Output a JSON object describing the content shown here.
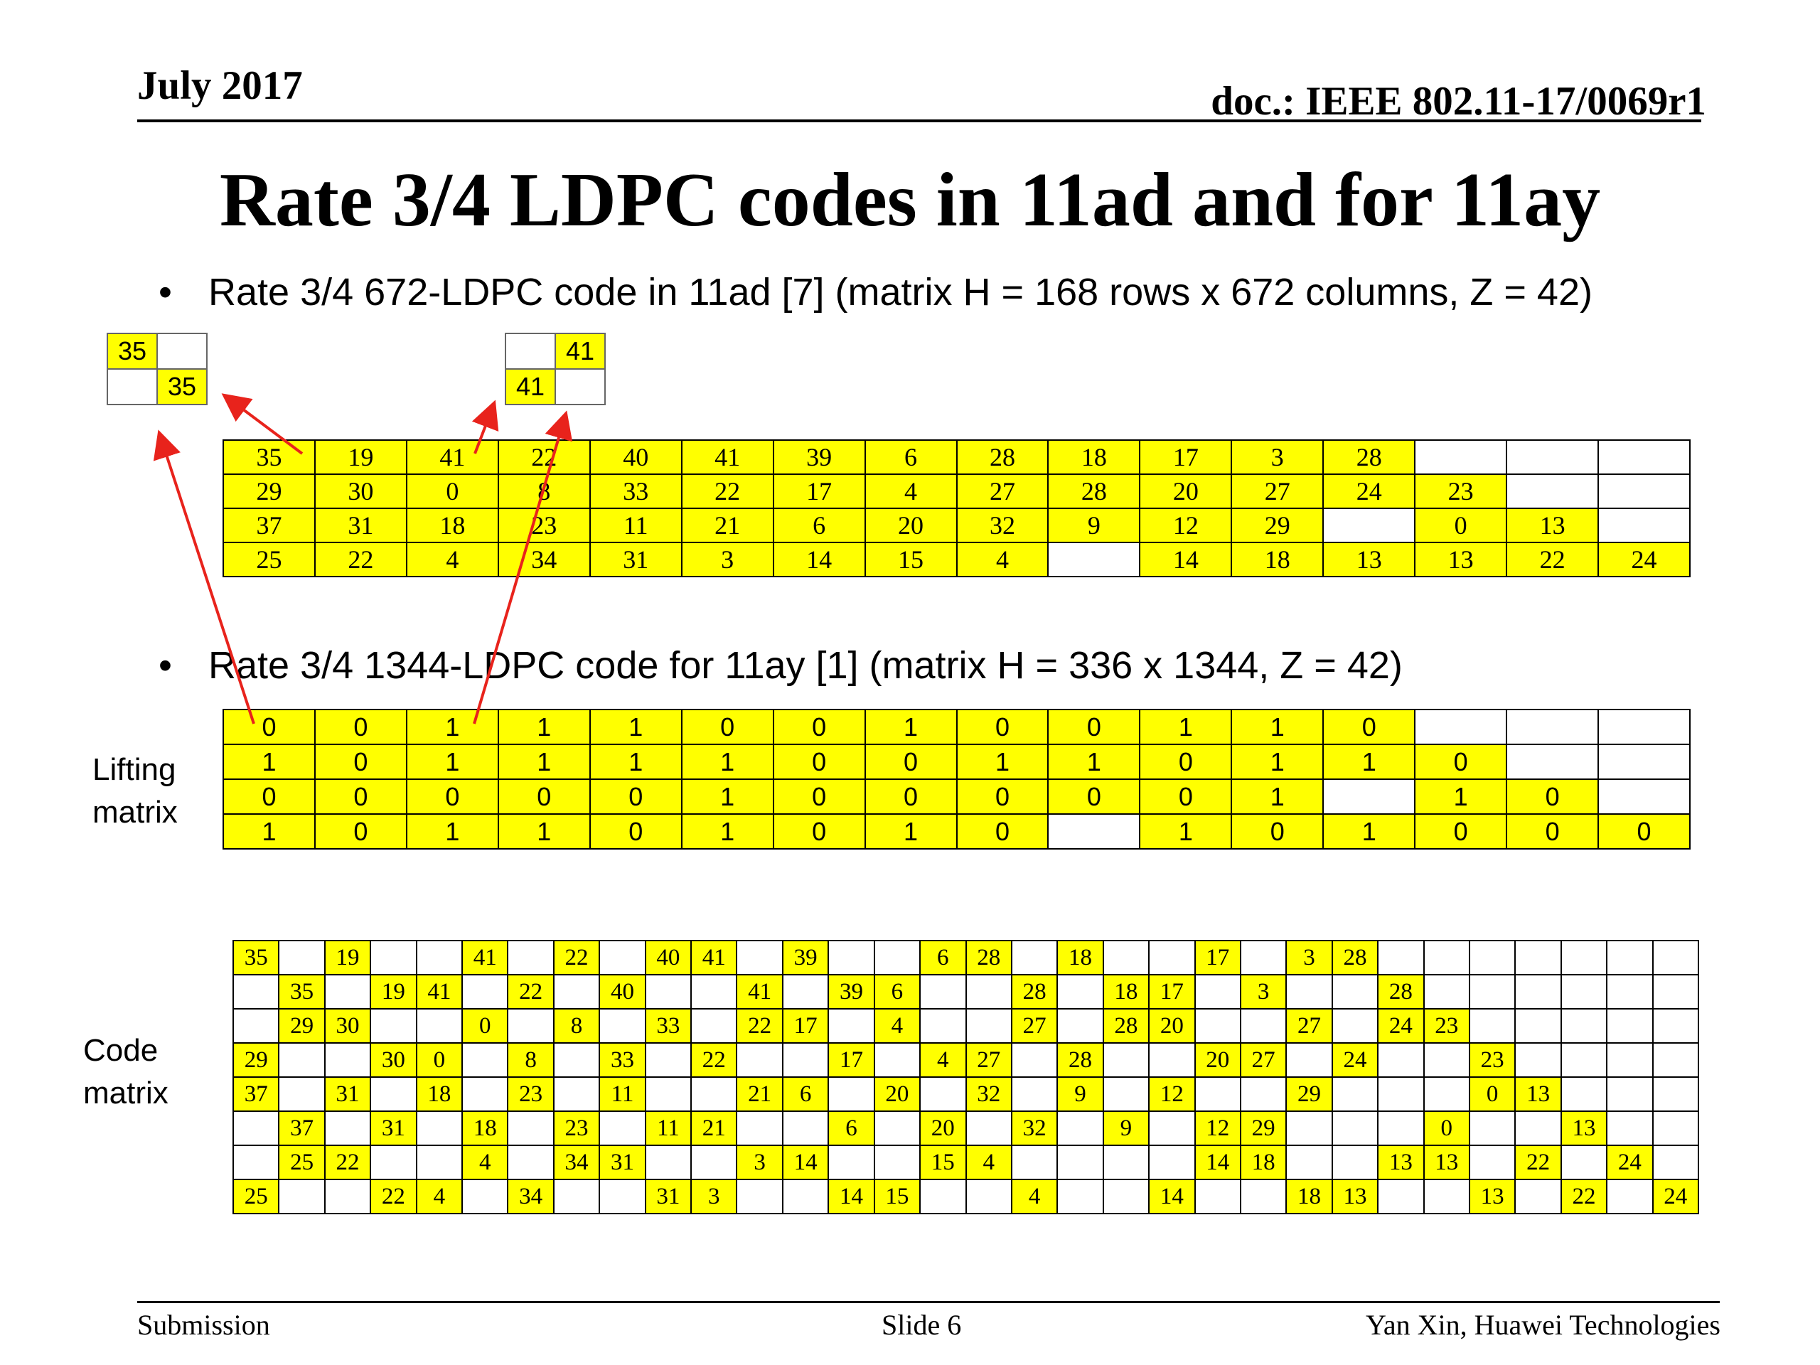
{
  "header": {
    "date": "July 2017",
    "doc": "doc.: IEEE 802.11-17/0069r1"
  },
  "title": "Rate 3/4 LDPC codes in 11ad and for 11ay",
  "bullets": [
    "Rate 3/4 672-LDPC code in 11ad [7] (matrix H = 168 rows x 672 columns, Z = 42)",
    "Rate 3/4 1344-LDPC code for 11ay [1] (matrix H = 336 x 1344, Z = 42)"
  ],
  "small_matrices": [
    [
      [
        "35",
        ""
      ],
      [
        "",
        "35"
      ]
    ],
    [
      [
        "",
        "41"
      ],
      [
        "41",
        ""
      ]
    ]
  ],
  "matrix_11ad": [
    [
      "35",
      "19",
      "41",
      "22",
      "40",
      "41",
      "39",
      "6",
      "28",
      "18",
      "17",
      "3",
      "28",
      "",
      "",
      ""
    ],
    [
      "29",
      "30",
      "0",
      "8",
      "33",
      "22",
      "17",
      "4",
      "27",
      "28",
      "20",
      "27",
      "24",
      "23",
      "",
      ""
    ],
    [
      "37",
      "31",
      "18",
      "23",
      "11",
      "21",
      "6",
      "20",
      "32",
      "9",
      "12",
      "29",
      "",
      "0",
      "13",
      ""
    ],
    [
      "25",
      "22",
      "4",
      "34",
      "31",
      "3",
      "14",
      "15",
      "4",
      "",
      "14",
      "18",
      "13",
      "13",
      "22",
      "24"
    ]
  ],
  "lifting_label": [
    "Lifting",
    "matrix"
  ],
  "lifting_matrix": [
    [
      "0",
      "0",
      "1",
      "1",
      "1",
      "0",
      "0",
      "1",
      "0",
      "0",
      "1",
      "1",
      "0",
      "",
      "",
      ""
    ],
    [
      "1",
      "0",
      "1",
      "1",
      "1",
      "1",
      "0",
      "0",
      "1",
      "1",
      "0",
      "1",
      "1",
      "0",
      "",
      ""
    ],
    [
      "0",
      "0",
      "0",
      "0",
      "0",
      "1",
      "0",
      "0",
      "0",
      "0",
      "0",
      "1",
      "",
      "1",
      "0",
      ""
    ],
    [
      "1",
      "0",
      "1",
      "1",
      "0",
      "1",
      "0",
      "1",
      "0",
      "",
      "1",
      "0",
      "1",
      "0",
      "0",
      "0"
    ]
  ],
  "code_label": [
    "Code",
    "matrix"
  ],
  "code_matrix": [
    [
      "35",
      "",
      "19",
      "",
      "",
      "41",
      "",
      "22",
      "",
      "40",
      "41",
      "",
      "39",
      "",
      "",
      "6",
      "28",
      "",
      "18",
      "",
      "",
      "17",
      "",
      "3",
      "28",
      "",
      "",
      "",
      "",
      "",
      "",
      ""
    ],
    [
      "",
      "35",
      "",
      "19",
      "41",
      "",
      "22",
      "",
      "40",
      "",
      "",
      "41",
      "",
      "39",
      "6",
      "",
      "",
      "28",
      "",
      "18",
      "17",
      "",
      "3",
      "",
      "",
      "28",
      "",
      "",
      "",
      "",
      "",
      ""
    ],
    [
      "",
      "29",
      "30",
      "",
      "",
      "0",
      "",
      "8",
      "",
      "33",
      "",
      "22",
      "17",
      "",
      "4",
      "",
      "",
      "27",
      "",
      "28",
      "20",
      "",
      "",
      "27",
      "",
      "24",
      "23",
      "",
      "",
      "",
      "",
      ""
    ],
    [
      "29",
      "",
      "",
      "30",
      "0",
      "",
      "8",
      "",
      "33",
      "",
      "22",
      "",
      "",
      "17",
      "",
      "4",
      "27",
      "",
      "28",
      "",
      "",
      "20",
      "27",
      "",
      "24",
      "",
      "",
      "23",
      "",
      "",
      "",
      ""
    ],
    [
      "37",
      "",
      "31",
      "",
      "18",
      "",
      "23",
      "",
      "11",
      "",
      "",
      "21",
      "6",
      "",
      "20",
      "",
      "32",
      "",
      "9",
      "",
      "12",
      "",
      "",
      "29",
      "",
      "",
      "",
      "0",
      "13",
      "",
      "",
      ""
    ],
    [
      "",
      "37",
      "",
      "31",
      "",
      "18",
      "",
      "23",
      "",
      "11",
      "21",
      "",
      "",
      "6",
      "",
      "20",
      "",
      "32",
      "",
      "9",
      "",
      "12",
      "29",
      "",
      "",
      "",
      "0",
      "",
      "",
      "13",
      "",
      ""
    ],
    [
      "",
      "25",
      "22",
      "",
      "",
      "4",
      "",
      "34",
      "31",
      "",
      "",
      "3",
      "14",
      "",
      "",
      "15",
      "4",
      "",
      "",
      "",
      "",
      "14",
      "18",
      "",
      "",
      "13",
      "13",
      "",
      "22",
      "",
      "24",
      ""
    ],
    [
      "25",
      "",
      "",
      "22",
      "4",
      "",
      "34",
      "",
      "",
      "31",
      "3",
      "",
      "",
      "14",
      "15",
      "",
      "",
      "4",
      "",
      "",
      "14",
      "",
      "",
      "18",
      "13",
      "",
      "",
      "13",
      "",
      "22",
      "",
      "24"
    ]
  ],
  "footer": {
    "left": "Submission",
    "center": "Slide 6",
    "right": "Yan Xin, Huawei Technologies"
  },
  "colors": {
    "highlight": "#ffff00",
    "arrow": "#e8231c"
  }
}
